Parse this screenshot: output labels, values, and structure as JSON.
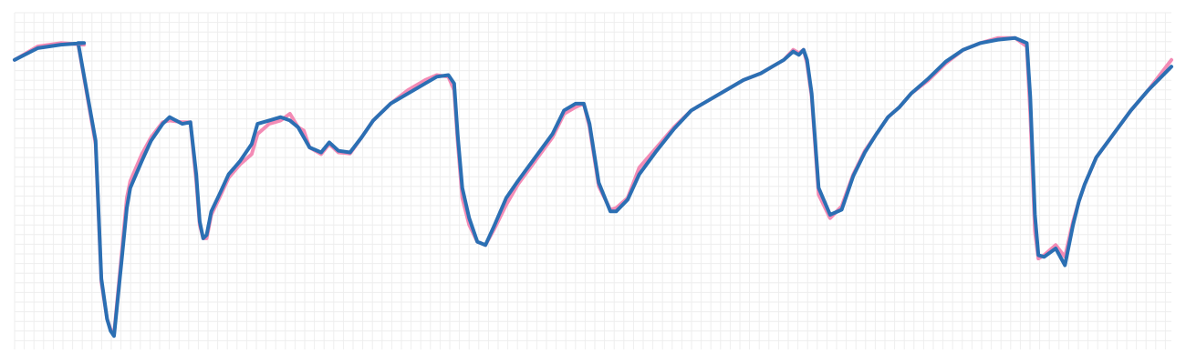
{
  "chart_data": {
    "type": "line",
    "title": "",
    "xlabel": "",
    "ylabel": "",
    "grid": true,
    "legend": "none",
    "xlim": [
      0,
      100
    ],
    "ylim": [
      0,
      100
    ],
    "series": [
      {
        "color": "#f38bb5",
        "x": [
          0,
          2,
          4,
          6,
          5.5,
          7,
          7.5,
          8,
          8.3,
          8.6,
          8.8,
          9.3,
          9.7,
          10,
          11,
          11.8,
          12.8,
          13.4,
          14.5,
          15.2,
          15.7,
          16,
          16.3,
          16.6,
          17,
          17.7,
          18.5,
          19.5,
          20.5,
          21,
          22,
          23,
          23.8,
          24.5,
          25,
          25.5,
          26.5,
          27.2,
          28,
          29,
          30,
          31,
          32.5,
          34,
          35.5,
          36.5,
          37.5,
          38,
          38.3,
          38.7,
          39.3,
          40,
          40.7,
          41.5,
          42.5,
          43.5,
          45,
          46.5,
          47.5,
          48.5,
          49.2,
          49.7,
          50.5,
          51.5,
          52,
          53,
          54,
          55.5,
          57,
          58.5,
          60,
          61.5,
          63,
          64.5,
          65.5,
          66.5,
          67.3,
          67.8,
          68.2,
          68.5,
          68.9,
          69.5,
          70.5,
          71.5,
          72.5,
          73.5,
          74.5,
          75.5,
          76.5,
          77.5,
          79,
          80.5,
          82,
          83.5,
          85,
          86.5,
          87.5,
          87.8,
          88.2,
          88.5,
          89,
          90,
          90.8,
          91.5,
          92,
          92.5,
          93.5,
          95,
          96.5,
          98,
          100
        ],
        "y": [
          86,
          90,
          91,
          90.5,
          90.7,
          61,
          20,
          9,
          6,
          4.5,
          12,
          30,
          45,
          50,
          58,
          63,
          67.5,
          68,
          67.5,
          67.5,
          50,
          37,
          33,
          33,
          40,
          45,
          51,
          55,
          58,
          64,
          67,
          68,
          70,
          66,
          65,
          60,
          58,
          61,
          58.5,
          58.2,
          63,
          68,
          73,
          77,
          80,
          81.5,
          81,
          77,
          62,
          45,
          37,
          32,
          31,
          36,
          43,
          49,
          56,
          63,
          70,
          72,
          73,
          66,
          48.5,
          41.5,
          42,
          45,
          54,
          60,
          66,
          71,
          74,
          77,
          80,
          82,
          84,
          86,
          89,
          88,
          89,
          85,
          75,
          46,
          39,
          42.5,
          52,
          59,
          64,
          69,
          72,
          76,
          80,
          85,
          89,
          91,
          92.5,
          92.5,
          90,
          70,
          35,
          27,
          28,
          31,
          27.5,
          38,
          44,
          49,
          57,
          64,
          71,
          77,
          86
        ]
      },
      {
        "color": "#2b6fb3",
        "x": [
          0,
          2,
          4,
          6,
          5.5,
          7,
          7.5,
          8,
          8.3,
          8.6,
          8.8,
          9.3,
          9.7,
          10,
          11,
          11.8,
          12.8,
          13.4,
          14.5,
          15.2,
          15.7,
          16,
          16.3,
          16.6,
          17,
          17.7,
          18.5,
          19.5,
          20.5,
          21,
          22,
          23,
          23.8,
          24.5,
          25,
          25.5,
          26.5,
          27.2,
          28,
          29,
          30,
          31,
          32.5,
          34,
          35.5,
          36.5,
          37.5,
          38,
          38.3,
          38.7,
          39.3,
          40,
          40.7,
          41.5,
          42.5,
          43.5,
          45,
          46.5,
          47.5,
          48.5,
          49.2,
          49.7,
          50.5,
          51.5,
          52,
          53,
          54,
          55.5,
          57,
          58.5,
          60,
          61.5,
          63,
          64.5,
          65.5,
          66.5,
          67.3,
          67.8,
          68.2,
          68.5,
          68.9,
          69.5,
          70.5,
          71.5,
          72.5,
          73.5,
          74.5,
          75.5,
          76.5,
          77.5,
          79,
          80.5,
          82,
          83.5,
          85,
          86.5,
          87.5,
          87.8,
          88.2,
          88.5,
          89,
          90,
          90.8,
          91.5,
          92,
          92.5,
          93.5,
          95,
          96.5,
          98,
          100
        ],
        "y": [
          86,
          89.5,
          90.5,
          91,
          91,
          62,
          21,
          9,
          5.5,
          4,
          11,
          28,
          42,
          48,
          56,
          62,
          67,
          69,
          67,
          67.5,
          52,
          38,
          33,
          34,
          41,
          46,
          52,
          56,
          61,
          67,
          68,
          69,
          68,
          66,
          63,
          60,
          58.5,
          61.5,
          59,
          58.5,
          63,
          68,
          73,
          76,
          79,
          81,
          81.5,
          79,
          64,
          48,
          39,
          32,
          31,
          37,
          45,
          50,
          57,
          64,
          71,
          73,
          73,
          67,
          49.5,
          41,
          41,
          44.5,
          52,
          59,
          65.5,
          71,
          74,
          77,
          80,
          82,
          84,
          86,
          88.5,
          87.5,
          89,
          86,
          76,
          48,
          40,
          41.5,
          51.5,
          58.5,
          64,
          69,
          72,
          76,
          80.5,
          85.5,
          89,
          91,
          92,
          92.5,
          91,
          75,
          40,
          28,
          27.5,
          30,
          25,
          37,
          44,
          49,
          57,
          64,
          71,
          77,
          84
        ]
      }
    ]
  }
}
